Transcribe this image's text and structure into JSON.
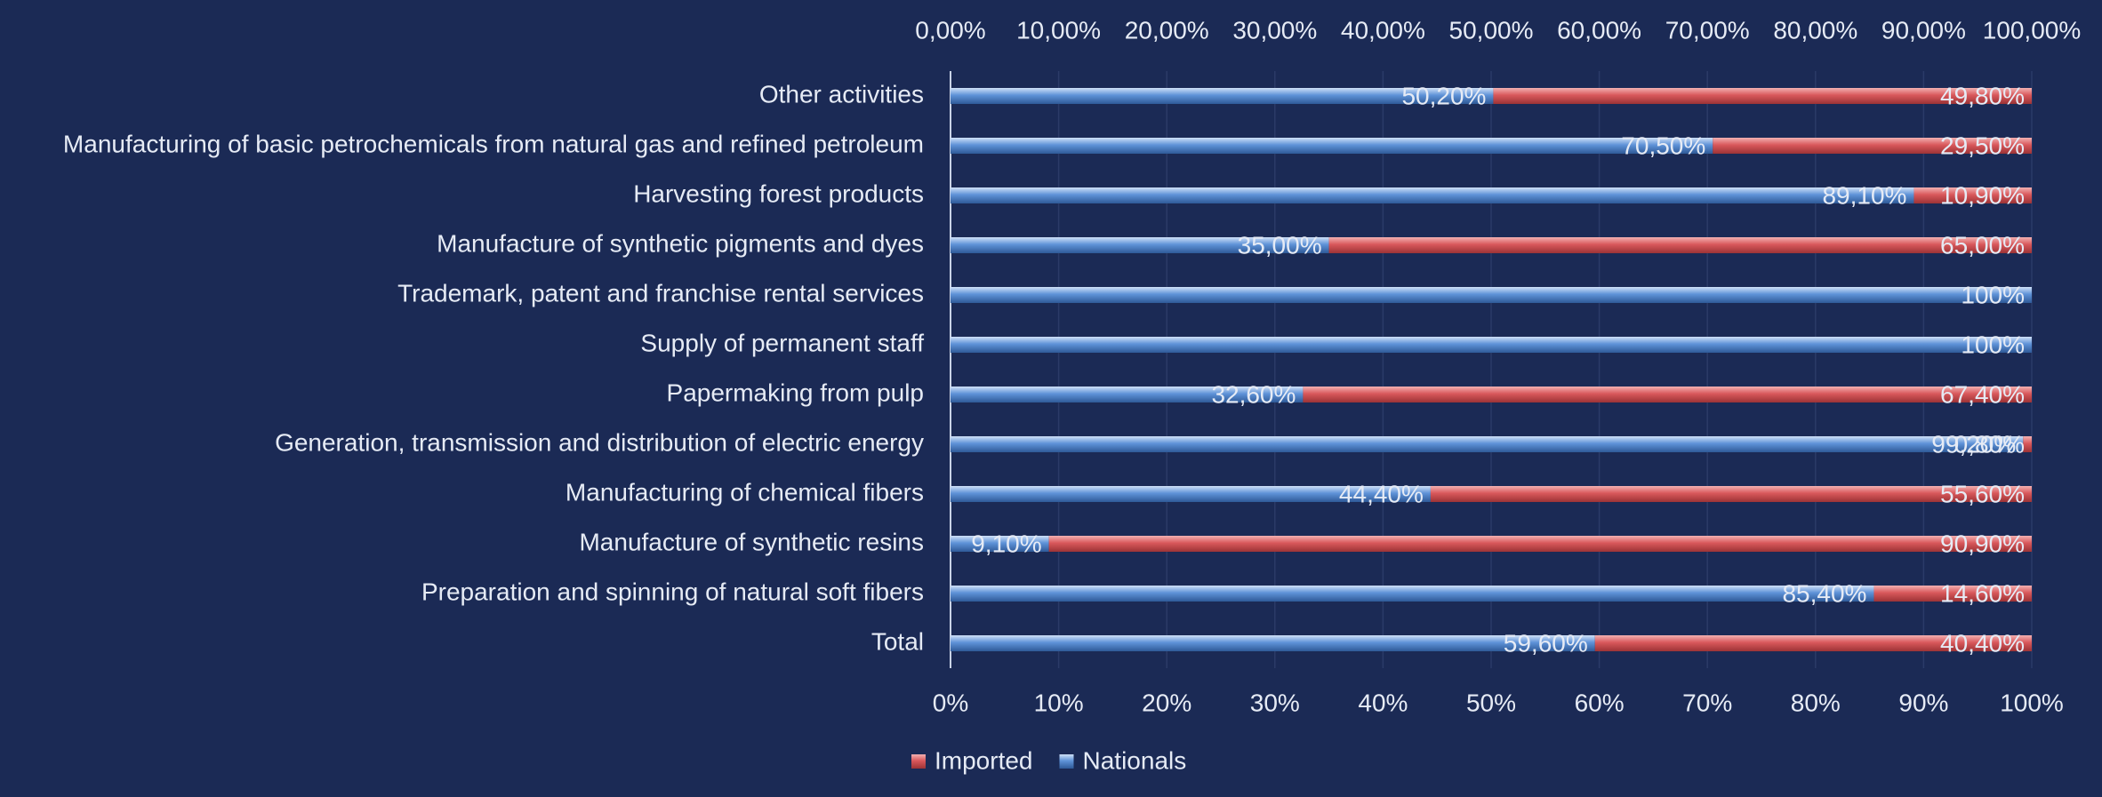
{
  "chart_data": {
    "type": "stacked_bar_horizontal",
    "categories": [
      "Other activities",
      "Manufacturing of basic petrochemicals from natural gas and refined petroleum",
      "Harvesting forest products",
      "Manufacture of synthetic pigments and dyes",
      "Trademark, patent and franchise rental services",
      "Supply of permanent staff",
      "Papermaking from pulp",
      "Generation, transmission and distribution of electric energy",
      "Manufacturing of chemical fibers",
      "Manufacture of synthetic resins",
      "Preparation and spinning of natural soft fibers",
      "Total"
    ],
    "series": [
      {
        "name": "Imported",
        "color": "#d9585b",
        "values": [
          49.8,
          29.5,
          10.9,
          65,
          0,
          0,
          67.4,
          0.8,
          55.6,
          90.9,
          14.6,
          40.4
        ],
        "value_labels": [
          "49,80%",
          "29,50%",
          "10,90%",
          "65,00%",
          null,
          null,
          "67,40%",
          "0,80%",
          "55,60%",
          "90,90%",
          "14,60%",
          "40,40%"
        ]
      },
      {
        "name": "Nationals",
        "color": "#5f93d8",
        "values": [
          50.2,
          70.5,
          89.1,
          35,
          100,
          100,
          32.6,
          99.2,
          44.4,
          9.1,
          85.4,
          59.6
        ],
        "value_labels": [
          "50,20%",
          "70,50%",
          "89,10%",
          "35,00%",
          "100%",
          "100%",
          "32,60%",
          "99,20%",
          "44,40%",
          "9,10%",
          "85,40%",
          "59,60%"
        ]
      }
    ],
    "xlim": [
      0,
      100
    ],
    "xticks": [
      {
        "value": 0,
        "label": "0%"
      },
      {
        "value": 10,
        "label": "10%"
      },
      {
        "value": 20,
        "label": "20%"
      },
      {
        "value": 30,
        "label": "30%"
      },
      {
        "value": 40,
        "label": "40%"
      },
      {
        "value": 50,
        "label": "50%"
      },
      {
        "value": 60,
        "label": "60%"
      },
      {
        "value": 70,
        "label": "70%"
      },
      {
        "value": 80,
        "label": "80%"
      },
      {
        "value": 90,
        "label": "90%"
      },
      {
        "value": 100,
        "label": "100%"
      }
    ],
    "x2lim": [
      0,
      100
    ],
    "x2ticks": [
      {
        "value": 0,
        "label": "0,00%"
      },
      {
        "value": 10,
        "label": "10,00%"
      },
      {
        "value": 20,
        "label": "20,00%"
      },
      {
        "value": 30,
        "label": "30,00%"
      },
      {
        "value": 40,
        "label": "40,00%"
      },
      {
        "value": 50,
        "label": "50,00%"
      },
      {
        "value": 60,
        "label": "60,00%"
      },
      {
        "value": 70,
        "label": "70,00%"
      },
      {
        "value": 80,
        "label": "80,00%"
      },
      {
        "value": 90,
        "label": "90,00%"
      },
      {
        "value": 100,
        "label": "100,00%"
      }
    ],
    "grid": true,
    "legend": "bottom"
  }
}
